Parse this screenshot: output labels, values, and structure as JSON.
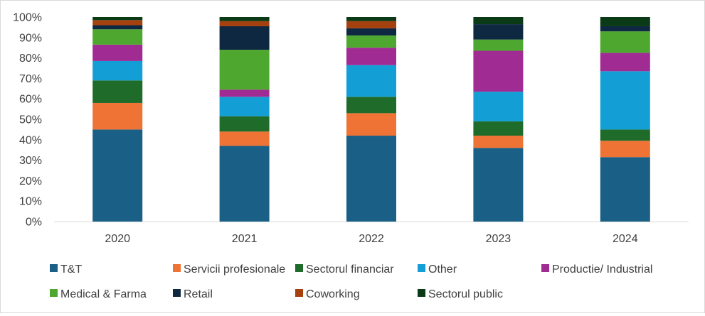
{
  "chart_data": {
    "type": "bar",
    "stacked": true,
    "categories": [
      "2020",
      "2021",
      "2022",
      "2023",
      "2024"
    ],
    "ylim": [
      0,
      100
    ],
    "y_ticks": [
      "0%",
      "10%",
      "20%",
      "30%",
      "40%",
      "50%",
      "60%",
      "70%",
      "80%",
      "90%",
      "100%"
    ],
    "grid": false,
    "legend_position": "bottom",
    "series": [
      {
        "name": "T&T",
        "color": "#1a5f86",
        "values": [
          45,
          37,
          42,
          36,
          31.5
        ]
      },
      {
        "name": "Servicii profesionale",
        "color": "#ee7334",
        "values": [
          13,
          7,
          11,
          6,
          8
        ]
      },
      {
        "name": "Sectorul financiar",
        "color": "#1e6b2a",
        "values": [
          11,
          7.5,
          8,
          7,
          5.5
        ]
      },
      {
        "name": "Other",
        "color": "#139fd6",
        "values": [
          9.5,
          9.5,
          15.5,
          14.5,
          28.5
        ]
      },
      {
        "name": "Productie/ Industrial",
        "color": "#a02b93",
        "values": [
          8,
          3.5,
          8.5,
          20,
          9
        ]
      },
      {
        "name": "Medical & Farma",
        "color": "#4ea72e",
        "values": [
          7.5,
          19.5,
          6,
          5.5,
          10.5
        ]
      },
      {
        "name": "Retail",
        "color": "#0e2841",
        "values": [
          2,
          11.5,
          3.5,
          7.5,
          2.5
        ]
      },
      {
        "name": "Coworking",
        "color": "#a5400f",
        "values": [
          2.5,
          2.5,
          3.5,
          0,
          0
        ]
      },
      {
        "name": "Sectorul public",
        "color": "#0a3a16",
        "values": [
          1.5,
          2,
          2,
          3.5,
          4.5
        ]
      }
    ]
  }
}
